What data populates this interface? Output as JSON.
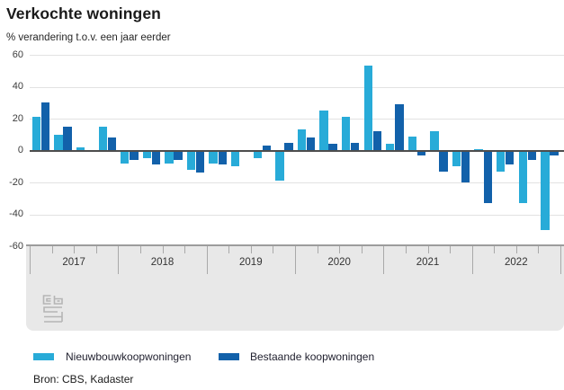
{
  "chart_data": {
    "type": "bar",
    "title": "Verkochte woningen",
    "subtitle": "% verandering t.o.v. een jaar eerder",
    "categories": [
      "2017 Q1",
      "2017 Q2",
      "2017 Q3",
      "2017 Q4",
      "2018 Q1",
      "2018 Q2",
      "2018 Q3",
      "2018 Q4",
      "2019 Q1",
      "2019 Q2",
      "2019 Q3",
      "2019 Q4",
      "2020 Q1",
      "2020 Q2",
      "2020 Q3",
      "2020 Q4",
      "2021 Q1",
      "2021 Q2",
      "2021 Q3",
      "2021 Q4",
      "2022 Q1",
      "2022 Q2",
      "2022 Q3",
      "2022 Q4"
    ],
    "series": [
      {
        "name": "Nieuwbouwkoopwoningen",
        "color": "#28abd8",
        "values": [
          21,
          10,
          2,
          15,
          -8,
          -5,
          -8,
          -12,
          -8,
          -10,
          -5,
          -19,
          13,
          25,
          21,
          53,
          4,
          9,
          12,
          -10,
          1,
          -13,
          -33,
          -50
        ]
      },
      {
        "name": "Bestaande koopwoningen",
        "color": "#1261aa",
        "values": [
          30,
          15,
          0,
          8,
          -6,
          -9,
          -6,
          -14,
          -9,
          0,
          3,
          5,
          8,
          4,
          5,
          12,
          29,
          -3,
          -13,
          -20,
          -33,
          -9,
          -6,
          -3
        ]
      }
    ],
    "x_year_labels": [
      "2017",
      "2018",
      "2019",
      "2020",
      "2021",
      "2022"
    ],
    "quarters_per_year": 4,
    "ylim": [
      -60,
      60
    ],
    "yticks": [
      60,
      40,
      20,
      0,
      -20,
      -40,
      -60
    ],
    "grid": true,
    "legend_position": "bottom"
  },
  "source": {
    "label": "Bron: CBS, Kadaster"
  },
  "logo": {
    "name": "cbs-logo"
  },
  "colors": {
    "bar_light_blue": "#28abd8",
    "bar_dark_blue": "#1261aa",
    "axis_band_bg": "#e8e8e8",
    "axis_band_border": "#9c9c9c",
    "gridline": "#e2e2e2",
    "zero_line": "#4d4d4d",
    "text": "#1a1a1a"
  }
}
